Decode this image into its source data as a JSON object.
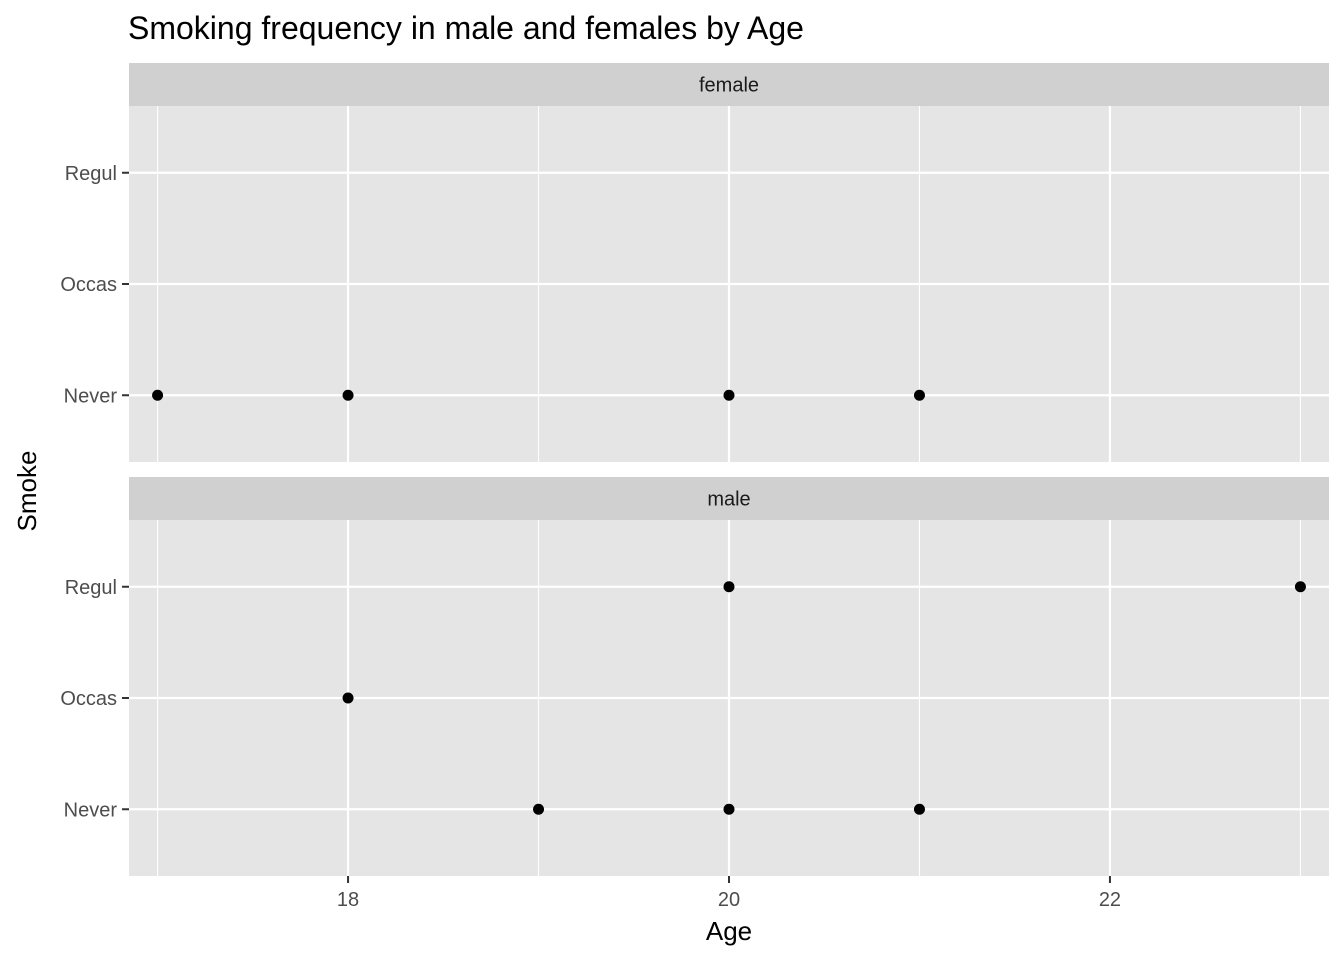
{
  "chart_data": {
    "type": "scatter",
    "title": "Smoking frequency in male and females by Age",
    "xlabel": "Age",
    "ylabel": "Smoke",
    "xlim": [
      16.85,
      23.15
    ],
    "x_ticks": [
      18,
      20,
      22
    ],
    "x_minor_ticks": [
      17,
      19,
      21,
      23
    ],
    "y_categories": [
      "Never",
      "Occas",
      "Regul"
    ],
    "facet_by": "sex",
    "panels": [
      {
        "label": "female",
        "points": [
          {
            "x": 17,
            "y": "Never"
          },
          {
            "x": 18,
            "y": "Never"
          },
          {
            "x": 20,
            "y": "Never"
          },
          {
            "x": 21,
            "y": "Never"
          }
        ]
      },
      {
        "label": "male",
        "points": [
          {
            "x": 20,
            "y": "Regul"
          },
          {
            "x": 23,
            "y": "Regul"
          },
          {
            "x": 18,
            "y": "Occas"
          },
          {
            "x": 19,
            "y": "Never"
          },
          {
            "x": 20,
            "y": "Never"
          },
          {
            "x": 21,
            "y": "Never"
          }
        ]
      }
    ],
    "grid": true,
    "colors": {
      "panel_background": "#e5e5e5",
      "strip_background": "#d0d0d0",
      "grid": "#ffffff",
      "point": "#000000",
      "tick_label": "#4d4d4d",
      "axis_tick": "#333333"
    }
  }
}
